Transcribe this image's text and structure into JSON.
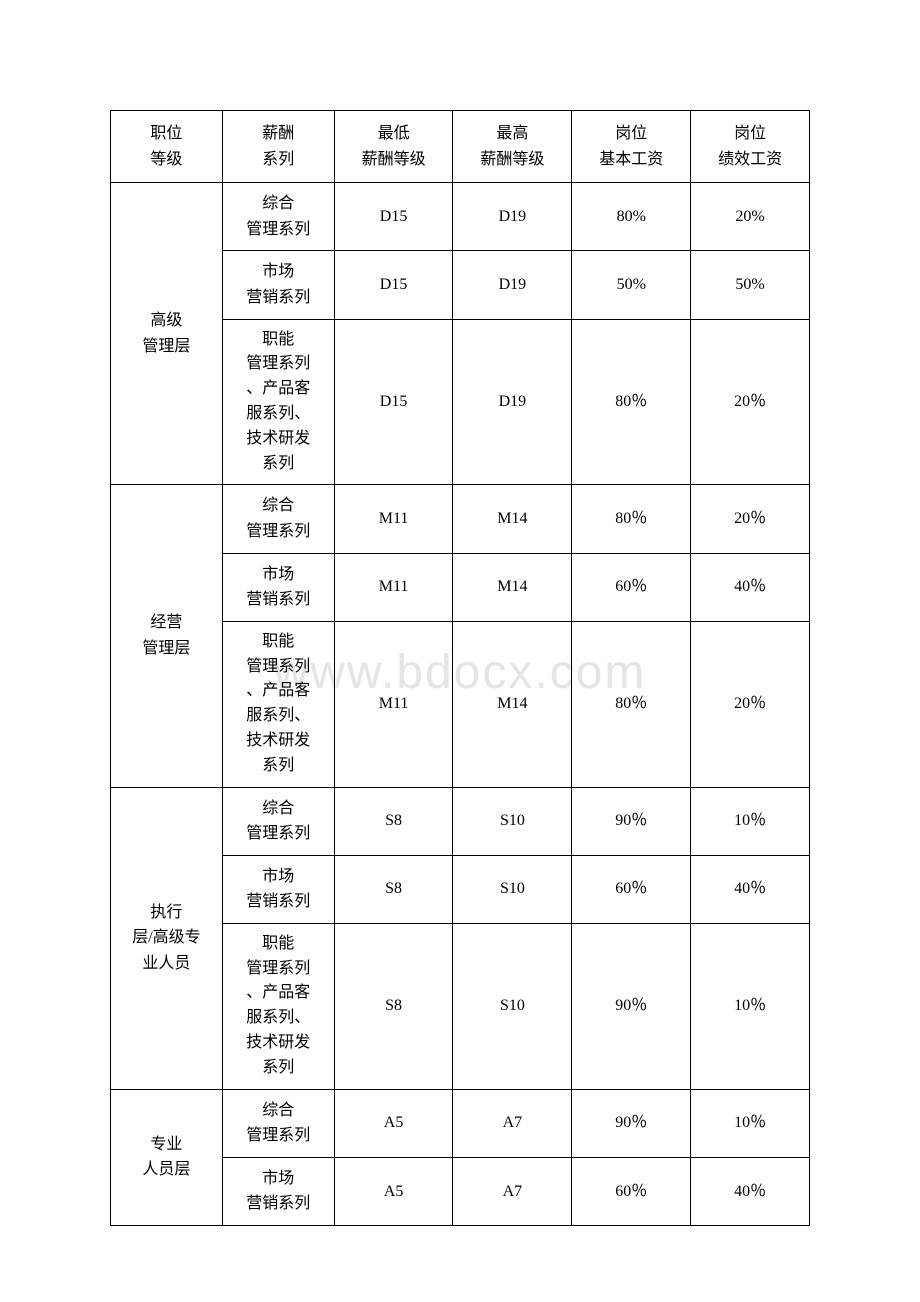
{
  "watermark": "www.bdocx.com",
  "headers": {
    "col1": "职位\n等级",
    "col2": "薪酬\n系列",
    "col3": "最低\n薪酬等级",
    "col4": "最高\n薪酬等级",
    "col5": "岗位\n基本工资",
    "col6": "岗位\n绩效工资"
  },
  "groups": [
    {
      "level": "高级\n管理层",
      "rows": [
        {
          "series": "综合\n管理系列",
          "min": "D15",
          "max": "D19",
          "base": "80%",
          "perf": "20%"
        },
        {
          "series": "市场\n营销系列",
          "min": "D15",
          "max": "D19",
          "base": "50%",
          "perf": "50%"
        },
        {
          "series": "职能\n管理系列\n、产品客\n服系列、\n技术研发\n系列",
          "min": "D15",
          "max": "D19",
          "base": "80％",
          "perf": "20％"
        }
      ]
    },
    {
      "level": "经营\n管理层",
      "rows": [
        {
          "series": "综合\n管理系列",
          "min": "M11",
          "max": "M14",
          "base": "80％",
          "perf": "20％"
        },
        {
          "series": "市场\n营销系列",
          "min": "M11",
          "max": "M14",
          "base": "60％",
          "perf": "40％"
        },
        {
          "series": "职能\n管理系列\n、产品客\n服系列、\n技术研发\n系列",
          "min": "M11",
          "max": "M14",
          "base": "80％",
          "perf": "20％"
        }
      ]
    },
    {
      "level": "执行\n层/高级专\n业人员",
      "rows": [
        {
          "series": "综合\n管理系列",
          "min": "S8",
          "max": "S10",
          "base": "90％",
          "perf": "10％"
        },
        {
          "series": "市场\n营销系列",
          "min": "S8",
          "max": "S10",
          "base": "60％",
          "perf": "40％"
        },
        {
          "series": "职能\n管理系列\n、产品客\n服系列、\n技术研发\n系列",
          "min": "S8",
          "max": "S10",
          "base": "90％",
          "perf": "10％"
        }
      ]
    },
    {
      "level": "专业\n人员层",
      "rows": [
        {
          "series": "综合\n管理系列",
          "min": "A5",
          "max": "A7",
          "base": "90％",
          "perf": "10％"
        },
        {
          "series": "市场\n营销系列",
          "min": "A5",
          "max": "A7",
          "base": "60％",
          "perf": "40％"
        }
      ]
    }
  ],
  "table_style": {
    "border_color": "#000000",
    "background_color": "#ffffff",
    "font_family": "SimSun",
    "header_fontsize": 16,
    "cell_fontsize": 16,
    "watermark_color": "#e5e5e5",
    "watermark_fontsize": 48
  }
}
